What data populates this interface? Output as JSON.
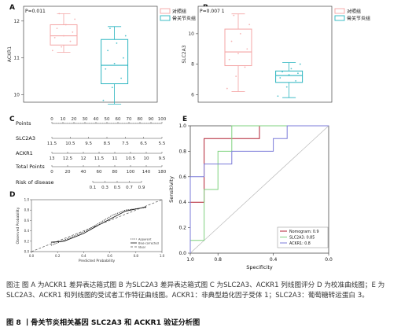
{
  "panel_letters": [
    "A",
    "B",
    "C",
    "D",
    "E"
  ],
  "colors": {
    "control": "#f4a4a4",
    "oa": "#2bb5c0",
    "nomogram": "#b22234",
    "slc2a3_roc": "#7fd27f",
    "ackr1_roc": "#7b7bd9",
    "diagonal": "#b8b8b8",
    "calibration": "#333333"
  },
  "chart_data": [
    {
      "id": "A",
      "type": "box",
      "p_text": "P=0.011",
      "ylabel": "ACKR1",
      "ylim": [
        9.8,
        12.4
      ],
      "yticks": [
        10,
        11,
        12
      ],
      "legend": [
        "对照组",
        "骨关节炎组"
      ],
      "legend_position": "top-right",
      "boxes": [
        {
          "group": "对照组",
          "min": 11.15,
          "q1": 11.35,
          "median": 11.6,
          "q3": 11.9,
          "max": 12.2,
          "points": [
            11.2,
            11.3,
            11.45,
            11.55,
            11.6,
            11.7,
            11.8,
            11.9,
            12.05,
            12.2
          ]
        },
        {
          "group": "骨关节炎组",
          "min": 9.75,
          "q1": 10.3,
          "median": 10.8,
          "q3": 11.5,
          "max": 11.85,
          "points": [
            9.85,
            10.2,
            10.45,
            10.7,
            10.85,
            11.0,
            11.2,
            11.4,
            11.6,
            11.8
          ]
        }
      ]
    },
    {
      "id": "B",
      "type": "box",
      "p_text": "P=0.007 1",
      "ylabel": "SLC2A3",
      "ylim": [
        5.5,
        11.8
      ],
      "yticks": [
        6,
        8,
        10
      ],
      "legend": [
        "对照组",
        "骨关节炎组"
      ],
      "legend_position": "top-right",
      "boxes": [
        {
          "group": "对照组",
          "min": 6.2,
          "q1": 7.9,
          "median": 8.8,
          "q3": 10.3,
          "max": 11.3,
          "points": [
            6.4,
            7.2,
            7.8,
            8.3,
            8.7,
            9.0,
            9.5,
            10.0,
            10.6,
            11.2
          ]
        },
        {
          "group": "骨关节炎组",
          "min": 5.8,
          "q1": 6.8,
          "median": 7.25,
          "q3": 7.55,
          "max": 8.1,
          "points": [
            5.9,
            6.5,
            6.9,
            7.1,
            7.3,
            7.4,
            7.5,
            7.7,
            8.0
          ]
        }
      ]
    },
    {
      "id": "C",
      "type": "nomogram",
      "rows": [
        {
          "label": "Points",
          "ticks": [
            "0",
            "10",
            "20",
            "30",
            "40",
            "50",
            "60",
            "70",
            "80",
            "90",
            "100"
          ]
        },
        {
          "label": "SLC2A3",
          "ticks": [
            "11.5",
            "10.5",
            "9.5",
            "8.5",
            "7.5",
            "6.5",
            "5.5"
          ]
        },
        {
          "label": "ACKR1",
          "ticks": [
            "13",
            "12.5",
            "12",
            "11.5",
            "11",
            "10.5",
            "10",
            "9.5"
          ]
        },
        {
          "label": "Total Points",
          "ticks": [
            "0",
            "20",
            "40",
            "60",
            "80",
            "100",
            "140",
            "180"
          ]
        },
        {
          "label": "Risk of disease",
          "ticks": [
            "0.1",
            "0.3",
            "0.5",
            "0.7",
            "0.9"
          ]
        }
      ]
    },
    {
      "id": "D",
      "type": "line",
      "xlabel": "Predicted Probability",
      "ylabel": "Observed Probability",
      "xlim": [
        0,
        1
      ],
      "ylim": [
        0,
        1
      ],
      "xticks": [
        "0.0",
        "0.2",
        "0.4",
        "0.6",
        "0.8",
        "1.0"
      ],
      "yticks": [
        "0.0",
        "0.2",
        "0.4",
        "0.6",
        "0.8",
        "1.0"
      ],
      "legend": [
        "Apparent",
        "Bias-corrected",
        "Ideal"
      ],
      "legend_position": "bottom-right",
      "series": [
        {
          "name": "Apparent",
          "style": "dotted",
          "x": [
            0.15,
            0.25,
            0.4,
            0.52,
            0.62,
            0.72,
            0.88
          ],
          "y": [
            0.12,
            0.22,
            0.38,
            0.55,
            0.7,
            0.8,
            0.85
          ]
        },
        {
          "name": "Bias-corrected",
          "style": "solid",
          "x": [
            0.15,
            0.25,
            0.4,
            0.52,
            0.62,
            0.72,
            0.88
          ],
          "y": [
            0.18,
            0.2,
            0.35,
            0.52,
            0.65,
            0.78,
            0.86
          ]
        },
        {
          "name": "Ideal",
          "style": "dashed",
          "x": [
            0,
            1
          ],
          "y": [
            0,
            1
          ]
        }
      ]
    },
    {
      "id": "E",
      "type": "line",
      "xlabel": "Specificity",
      "ylabel": "Sensitivity",
      "xlim": [
        1.0,
        0.0
      ],
      "ylim": [
        0,
        1
      ],
      "xticks": [
        "1.0",
        "0.8",
        "0.4",
        "0.0"
      ],
      "xtick_values": [
        1.0,
        0.8,
        0.4,
        0.0
      ],
      "yticks": [
        "0.0",
        "0.2",
        "0.4",
        "0.6",
        "0.8",
        "1.0"
      ],
      "legend_position": "bottom-right",
      "series": [
        {
          "name": "Nomogram: 0.9",
          "color_key": "nomogram",
          "x": [
            1.0,
            1.0,
            0.9,
            0.9,
            0.5,
            0.5,
            0.0
          ],
          "y": [
            0.0,
            0.4,
            0.4,
            0.9,
            0.9,
            1.0,
            1.0
          ]
        },
        {
          "name": "SLC2A3: 0.85",
          "color_key": "slc2a3_roc",
          "x": [
            1.0,
            1.0,
            0.9,
            0.9,
            0.8,
            0.8,
            0.7,
            0.7,
            0.0
          ],
          "y": [
            0.0,
            0.1,
            0.1,
            0.5,
            0.5,
            0.8,
            0.8,
            1.0,
            1.0
          ]
        },
        {
          "name": "ACKR1: 0.8",
          "color_key": "ackr1_roc",
          "x": [
            1.0,
            1.0,
            0.9,
            0.9,
            0.7,
            0.7,
            0.4,
            0.4,
            0.3,
            0.3,
            0.0
          ],
          "y": [
            0.0,
            0.6,
            0.6,
            0.7,
            0.7,
            0.8,
            0.8,
            0.9,
            0.9,
            1.0,
            1.0
          ]
        }
      ]
    }
  ],
  "caption": {
    "note": "图注 图 A 为ACKR1 差异表达箱式图 B 为SLC2A3 差异表达箱式图 C 为SLC2A3、ACKR1 列线图评分 D 为校准曲线图；E 为 SLC2A3、ACKR1 和列线图的受试者工作特征曲线图。ACKR1：非典型趋化因子受体 1；SLC2A3：葡萄糖转运蛋白 3。",
    "title": "图 8 丨骨关节炎相关基因 SLC2A3 和 ACKR1 验证分析图"
  }
}
